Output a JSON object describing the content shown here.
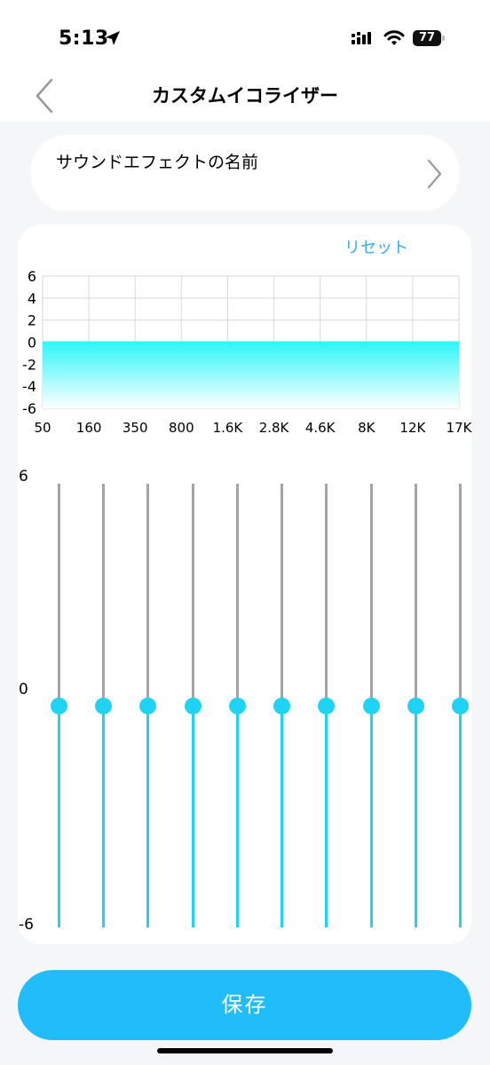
{
  "status_bar": {
    "time": "5:13",
    "battery": "77"
  },
  "header": {
    "title": "カスタムイコライザー"
  },
  "sound_effect": {
    "name": "サウンドエフェクトの名前"
  },
  "equalizer": {
    "reset_label": "リセット",
    "chart_y_ticks": [
      "6",
      "4",
      "2",
      "0",
      "-2",
      "-4",
      "-6"
    ],
    "frequency_labels": [
      "50",
      "160",
      "350",
      "800",
      "1.6K",
      "2.8K",
      "4.6K",
      "8K",
      "12K",
      "17K"
    ],
    "gain_max_label": "6",
    "gain_mid_label": "0",
    "gain_min_label": "-6",
    "band_gains": [
      0,
      0,
      0,
      0,
      0,
      0,
      0,
      0,
      0,
      0
    ],
    "gain_range": [
      -6,
      6
    ]
  },
  "colors": {
    "accent": "#1fd3f5",
    "button": "#21bdfb",
    "link": "#33aef0",
    "track": "#a4a4a4"
  },
  "actions": {
    "save_label": "保存"
  }
}
